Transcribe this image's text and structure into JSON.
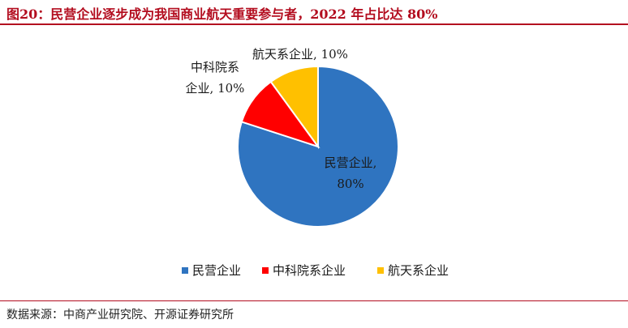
{
  "figure": {
    "title": "图20：民营企业逐步成为我国商业航天重要参与者，2022 年占比达 80%",
    "source": "数据来源：中商产业研究院、开源证券研究所"
  },
  "chart_data": {
    "type": "pie",
    "title": "",
    "legend_position": "bottom",
    "slices": [
      {
        "name": "民营企业",
        "value": 80,
        "label_line1": "民营企业,",
        "label_line2": "80%",
        "color": "#2f74c0"
      },
      {
        "name": "中科院系企业",
        "value": 10,
        "label_line1": "中科院系",
        "label_line2": "企业, 10%",
        "color": "#ff0000"
      },
      {
        "name": "航天系企业",
        "value": 10,
        "label_line1": "航天系企业, 10%",
        "label_line2": "",
        "color": "#ffc000"
      }
    ]
  }
}
